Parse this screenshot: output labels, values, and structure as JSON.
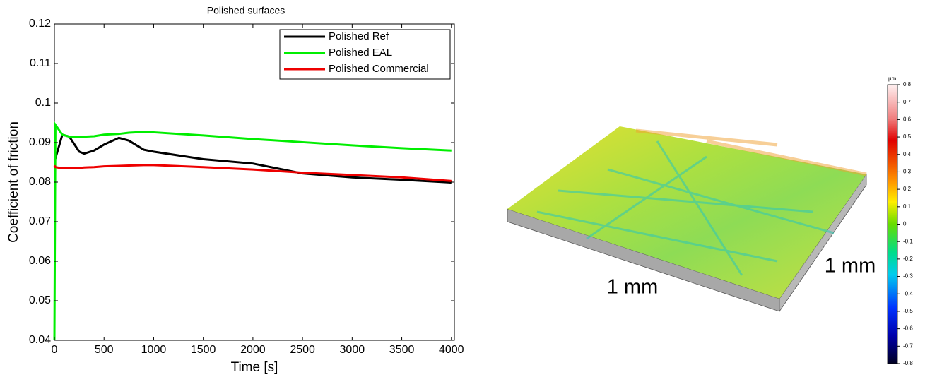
{
  "chart_data": {
    "type": "line",
    "title": "Polished surfaces",
    "x_label": "Time [s]",
    "y_label": "Coefficient of friction",
    "x": [
      0,
      10,
      80,
      150,
      250,
      300,
      400,
      500,
      650,
      750,
      900,
      1000,
      1500,
      2000,
      2500,
      3000,
      3500,
      4000
    ],
    "series": [
      {
        "name": "Polished Ref",
        "color": "#000000",
        "values": [
          0.0857,
          0.086,
          0.092,
          0.0915,
          0.0877,
          0.0872,
          0.088,
          0.0895,
          0.0912,
          0.0905,
          0.0882,
          0.0877,
          0.0858,
          0.0847,
          0.0822,
          0.0812,
          0.0806,
          0.0799
        ]
      },
      {
        "name": "Polished EAL",
        "color": "#00ee00",
        "values": [
          0.04,
          0.0945,
          0.092,
          0.0915,
          0.0915,
          0.0915,
          0.0916,
          0.092,
          0.0922,
          0.0925,
          0.0927,
          0.0926,
          0.0918,
          0.0909,
          0.0901,
          0.0893,
          0.0886,
          0.088
        ]
      },
      {
        "name": "Polished Commercial",
        "color": "#ee0000",
        "values": [
          0.0842,
          0.0838,
          0.0835,
          0.0835,
          0.0836,
          0.0837,
          0.0838,
          0.084,
          0.0841,
          0.0842,
          0.0843,
          0.0843,
          0.0838,
          0.0832,
          0.0824,
          0.0818,
          0.0812,
          0.0803
        ]
      }
    ],
    "xlim": [
      0,
      4030
    ],
    "xticks": [
      0,
      500,
      1000,
      1500,
      2000,
      2500,
      3000,
      3500,
      4000
    ],
    "ylim": [
      0.04,
      0.12
    ],
    "yticks": [
      0.04,
      0.05,
      0.06,
      0.07,
      0.08,
      0.09,
      0.1,
      0.11,
      0.12
    ],
    "legend": "upper right",
    "grid": false
  },
  "surface_image": {
    "labels": [
      "1 mm",
      "1 mm"
    ],
    "colorbar": {
      "unit": "µm",
      "lim": [
        -0.8,
        0.8
      ],
      "ticks": [
        0.8,
        0.7,
        0.6,
        0.5,
        0.4,
        0.3,
        0.2,
        0.1,
        0,
        -0.1,
        -0.2,
        -0.3,
        -0.4,
        -0.5,
        -0.6,
        -0.7,
        -0.8
      ]
    }
  }
}
